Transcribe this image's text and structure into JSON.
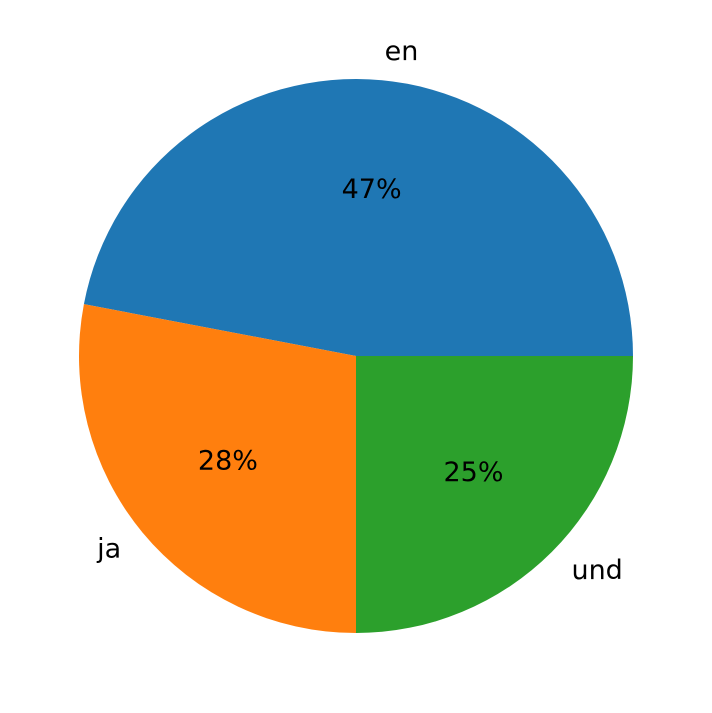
{
  "chart_data": {
    "type": "pie",
    "categories": [
      "en",
      "ja",
      "und"
    ],
    "values": [
      47,
      28,
      25
    ],
    "value_labels": [
      "47%",
      "28%",
      "25%"
    ],
    "colors": [
      "#1f77b4",
      "#ff7f0e",
      "#2ca02c"
    ]
  }
}
